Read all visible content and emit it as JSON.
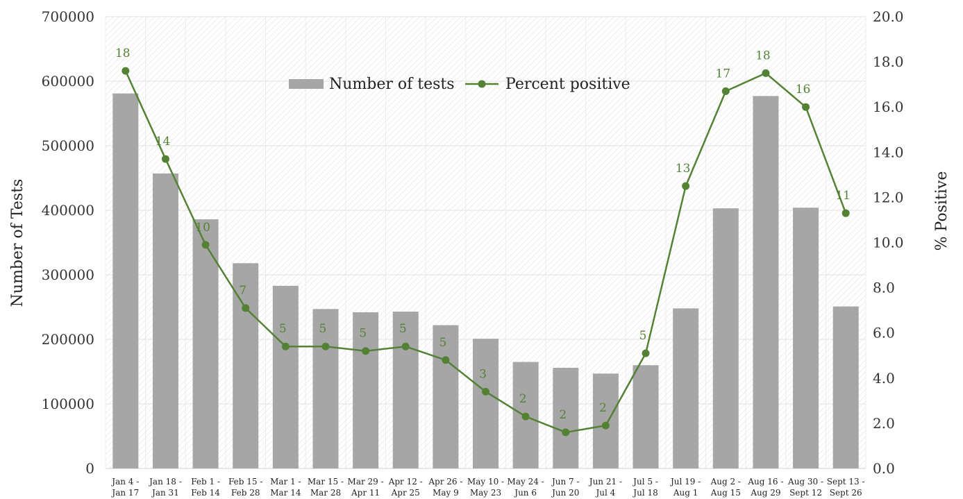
{
  "chart_data": {
    "type": "bar",
    "title": "",
    "categories": [
      [
        "Jan 4 -",
        "Jan 17"
      ],
      [
        "Jan 18 -",
        "Jan 31"
      ],
      [
        "Feb 1 -",
        "Feb 14"
      ],
      [
        "Feb 15 -",
        "Feb 28"
      ],
      [
        "Mar 1 -",
        "Mar 14"
      ],
      [
        "Mar 15 -",
        "Mar 28"
      ],
      [
        "Mar 29 -",
        "Apr 11"
      ],
      [
        "Apr 12 -",
        "Apr 25"
      ],
      [
        "Apr 26 -",
        "May 9"
      ],
      [
        "May 10 -",
        "May 23"
      ],
      [
        "May 24 -",
        "Jun 6"
      ],
      [
        "Jun 7 -",
        "Jun 20"
      ],
      [
        "Jun 21 -",
        "Jul 4"
      ],
      [
        "Jul 5 -",
        "Jul 18"
      ],
      [
        "Jul 19 -",
        "Aug 1"
      ],
      [
        "Aug 2 -",
        "Aug 15"
      ],
      [
        "Aug 16 -",
        "Aug 29"
      ],
      [
        "Aug 30 -",
        "Sept 12"
      ],
      [
        "Sept 13 -",
        "Sept 26"
      ]
    ],
    "series": [
      {
        "name": "Number of tests",
        "type": "bar",
        "axis": "left",
        "color": "#a6a6a6",
        "values": [
          581000,
          457000,
          386000,
          318000,
          283000,
          247000,
          242000,
          243000,
          222000,
          201000,
          165000,
          156000,
          147000,
          160000,
          248000,
          403000,
          577000,
          404000,
          251000
        ]
      },
      {
        "name": "Percent positive",
        "type": "line",
        "axis": "right",
        "color": "#548235",
        "values": [
          17.6,
          13.7,
          9.9,
          7.1,
          5.4,
          5.4,
          5.2,
          5.4,
          4.8,
          3.4,
          2.3,
          1.6,
          1.9,
          5.1,
          12.5,
          16.7,
          17.5,
          16.0,
          11.3
        ],
        "data_labels": [
          "18",
          "14",
          "10",
          "7",
          "5",
          "5",
          "5",
          "5",
          "5",
          "3",
          "2",
          "2",
          "2",
          "5",
          "13",
          "17",
          "18",
          "16",
          "11"
        ]
      }
    ],
    "ylabel": "Number of Tests",
    "ylabel_right": "% Positive",
    "xlabel": "",
    "ylim": [
      0,
      700000
    ],
    "y_ticks": [
      "0",
      "100000",
      "200000",
      "300000",
      "400000",
      "500000",
      "600000",
      "700000"
    ],
    "ylim_right": [
      0,
      20
    ],
    "y2_ticks": [
      "0.0",
      "2.0",
      "4.0",
      "6.0",
      "8.0",
      "10.0",
      "12.0",
      "14.0",
      "16.0",
      "18.0",
      "20.0"
    ],
    "grid": true,
    "legend_position": "top-center"
  }
}
